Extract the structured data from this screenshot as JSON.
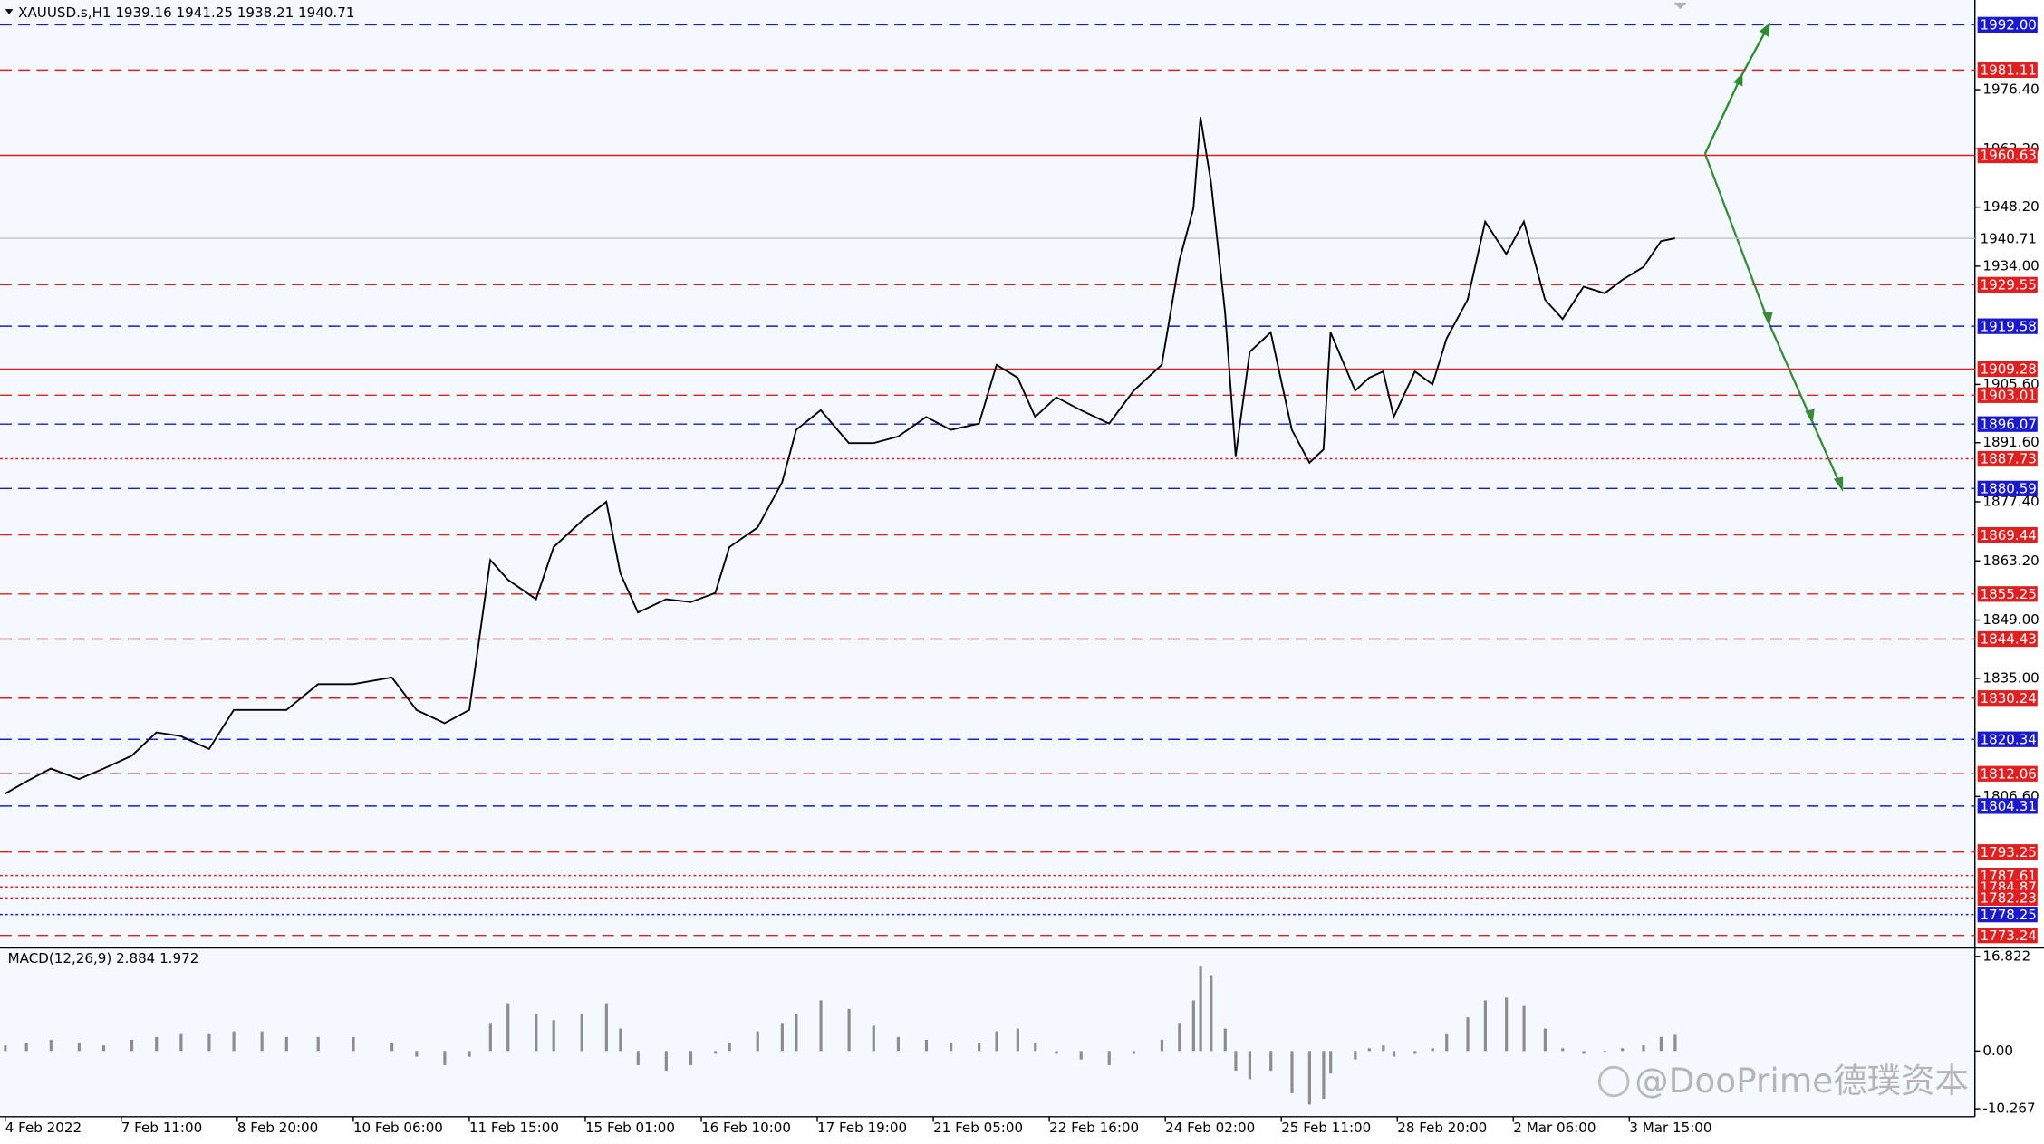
{
  "chart_data": [
    {
      "type": "line",
      "title": "XAUUSD.s,H1  1939.16 1941.25 1938.21 1940.71",
      "color": "#000000",
      "x": [
        0,
        6,
        13,
        21,
        28,
        36,
        43,
        50,
        58,
        65,
        73,
        80,
        89,
        99,
        110,
        117,
        125,
        132,
        138,
        143,
        151,
        156,
        164,
        171,
        175,
        180,
        188,
        195,
        202,
        206,
        214,
        221,
        225,
        232,
        240,
        247,
        254,
        262,
        269,
        277,
        282,
        288,
        293,
        299,
        306,
        314,
        321,
        329,
        334,
        338,
        340,
        343,
        347,
        350,
        354,
        360,
        366,
        371,
        375,
        377,
        384,
        388,
        392,
        395,
        401,
        406,
        410,
        416,
        421,
        427,
        432,
        438,
        443,
        449,
        455,
        460,
        466,
        471,
        475
      ],
      "values": [
        1807.3,
        1810.2,
        1813.3,
        1810.8,
        1813.3,
        1816.4,
        1822,
        1821.1,
        1818,
        1827.4,
        1827.4,
        1827.4,
        1833.6,
        1833.6,
        1835.2,
        1827.4,
        1824.2,
        1827.4,
        1863.4,
        1858.7,
        1854,
        1866.5,
        1872.8,
        1877.4,
        1860.2,
        1850.8,
        1854,
        1853.3,
        1855.5,
        1866.5,
        1871.2,
        1882.1,
        1894.7,
        1899.4,
        1891.5,
        1891.5,
        1893.1,
        1897.8,
        1894.7,
        1896.2,
        1910.3,
        1907.2,
        1897.8,
        1902.5,
        1899.4,
        1896.2,
        1904.1,
        1910.3,
        1935.3,
        1947.9,
        1969.8,
        1954.1,
        1922.8,
        1888.4,
        1913.4,
        1918.1,
        1894.7,
        1886.8,
        1890,
        1918.1,
        1904.1,
        1907.2,
        1908.7,
        1897.8,
        1908.7,
        1905.6,
        1916.6,
        1926,
        1944.7,
        1936.9,
        1944.7,
        1926,
        1921.3,
        1929.1,
        1927.5,
        1930.7,
        1933.8,
        1940,
        1940.71
      ],
      "xlim": [
        -1.48,
        560.3
      ],
      "xticks": [
        {
          "value": 0,
          "label": "4 Feb 2022"
        },
        {
          "value": 33,
          "label": "7 Feb 11:00"
        },
        {
          "value": 66,
          "label": "8 Feb 20:00"
        },
        {
          "value": 99,
          "label": "10 Feb 06:00"
        },
        {
          "value": 132,
          "label": "11 Feb 15:00"
        },
        {
          "value": 165,
          "label": "15 Feb 01:00"
        },
        {
          "value": 198,
          "label": "16 Feb 10:00"
        },
        {
          "value": 231,
          "label": "17 Feb 19:00"
        },
        {
          "value": 264,
          "label": "21 Feb 05:00"
        },
        {
          "value": 297,
          "label": "22 Feb 16:00"
        },
        {
          "value": 330,
          "label": "24 Feb 02:00"
        },
        {
          "value": 363,
          "label": "25 Feb 11:00"
        },
        {
          "value": 396,
          "label": "28 Feb 20:00"
        },
        {
          "value": 429,
          "label": "2 Mar 06:00"
        },
        {
          "value": 462,
          "label": "3 Mar 15:00"
        }
      ],
      "ylim": [
        1770.7,
        1997.95
      ],
      "yticks": [
        {
          "value": 1976.4,
          "label": "1976.40"
        },
        {
          "value": 1962.2,
          "label": "1962.20"
        },
        {
          "value": 1948.2,
          "label": "1948.20"
        },
        {
          "value": 1934,
          "label": "1934.00"
        },
        {
          "value": 1905.6,
          "label": "1905.60"
        },
        {
          "value": 1891.6,
          "label": "1891.60"
        },
        {
          "value": 1877.4,
          "label": "1877.40"
        },
        {
          "value": 1863.2,
          "label": "1863.20"
        },
        {
          "value": 1849,
          "label": "1849.00"
        },
        {
          "value": 1835,
          "label": "1835.00"
        },
        {
          "value": 1806.6,
          "label": "1806.60"
        }
      ],
      "last": {
        "value": 1940.71,
        "label": "1940.71",
        "color": "#c0c0c0"
      },
      "levels": [
        {
          "value": 1992,
          "label": "1992.00",
          "color": "#1a1acc",
          "style": "dashed"
        },
        {
          "value": 1981.11,
          "label": "1981.11",
          "color": "#e02020",
          "style": "dashed"
        },
        {
          "value": 1960.63,
          "label": "1960.63",
          "color": "#e02020",
          "style": "solid"
        },
        {
          "value": 1929.55,
          "label": "1929.55",
          "color": "#e02020",
          "style": "dashed"
        },
        {
          "value": 1919.58,
          "label": "1919.58",
          "color": "#1a1acc",
          "style": "dashed"
        },
        {
          "value": 1909.28,
          "label": "1909.28",
          "color": "#e02020",
          "style": "solid"
        },
        {
          "value": 1903.01,
          "label": "1903.01",
          "color": "#e02020",
          "style": "dashed"
        },
        {
          "value": 1896.07,
          "label": "1896.07",
          "color": "#1a1acc",
          "style": "dashed"
        },
        {
          "value": 1887.73,
          "label": "1887.73",
          "color": "#e02020",
          "style": "dotted"
        },
        {
          "value": 1880.59,
          "label": "1880.59",
          "color": "#1a1acc",
          "style": "dashed"
        },
        {
          "value": 1869.44,
          "label": "1869.44",
          "color": "#e02020",
          "style": "dashed"
        },
        {
          "value": 1855.25,
          "label": "1855.25",
          "color": "#e02020",
          "style": "dashed"
        },
        {
          "value": 1844.43,
          "label": "1844.43",
          "color": "#e02020",
          "style": "dashed"
        },
        {
          "value": 1830.24,
          "label": "1830.24",
          "color": "#e02020",
          "style": "dashed"
        },
        {
          "value": 1820.34,
          "label": "1820.34",
          "color": "#1a1acc",
          "style": "dashed"
        },
        {
          "value": 1812.06,
          "label": "1812.06",
          "color": "#e02020",
          "style": "dashed"
        },
        {
          "value": 1804.31,
          "label": "1804.31",
          "color": "#1a1acc",
          "style": "dashed"
        },
        {
          "value": 1793.25,
          "label": "1793.25",
          "color": "#e02020",
          "style": "dashed"
        },
        {
          "value": 1787.61,
          "label": "1787.61",
          "color": "#e02020",
          "style": "dotted"
        },
        {
          "value": 1784.87,
          "label": "1784.87",
          "color": "#e02020",
          "style": "dotted"
        },
        {
          "value": 1782.23,
          "label": "1782.23",
          "color": "#e02020",
          "style": "dotted"
        },
        {
          "value": 1778.25,
          "label": "1778.25",
          "color": "#1a1acc",
          "style": "dotted"
        },
        {
          "value": 1773.24,
          "label": "1773.24",
          "color": "#e02020",
          "style": "dashed"
        }
      ]
    },
    {
      "type": "bar",
      "title": "MACD(12,26,9) 2.884 1.972",
      "color": "#8c8c8c",
      "x": [
        0,
        6,
        13,
        21,
        28,
        36,
        43,
        50,
        58,
        65,
        73,
        80,
        89,
        99,
        110,
        117,
        125,
        132,
        138,
        143,
        151,
        156,
        164,
        171,
        175,
        180,
        188,
        195,
        202,
        206,
        214,
        221,
        225,
        232,
        240,
        247,
        254,
        262,
        269,
        277,
        282,
        288,
        293,
        299,
        306,
        314,
        321,
        329,
        334,
        338,
        340,
        343,
        347,
        350,
        354,
        360,
        366,
        371,
        375,
        377,
        384,
        388,
        392,
        395,
        401,
        406,
        410,
        416,
        421,
        427,
        432,
        438,
        443,
        449,
        455,
        460,
        466,
        471,
        475
      ],
      "values": [
        1,
        1.5,
        2,
        1.5,
        1,
        2,
        2.5,
        3,
        3,
        3.5,
        3.5,
        2.5,
        2.5,
        2.5,
        1.5,
        -1,
        -2.5,
        -1,
        5,
        8.5,
        6.5,
        5.5,
        6.5,
        8.5,
        4,
        -2.5,
        -3.5,
        -2.5,
        -0.5,
        1.5,
        3.5,
        5,
        6.5,
        9,
        7.5,
        4.5,
        2.5,
        2,
        1.5,
        1.5,
        3.5,
        4,
        1.5,
        -0.5,
        -1.5,
        -2.5,
        -0.5,
        2,
        5,
        9,
        15,
        13.5,
        4,
        -3.5,
        -5,
        -3.5,
        -7.5,
        -9.5,
        -8.5,
        -4,
        -1.5,
        0.5,
        1,
        -1,
        -0.5,
        0.5,
        3,
        6,
        9,
        9.5,
        8,
        4,
        0.5,
        -0.5,
        0,
        0.5,
        1,
        2.5,
        2.884
      ],
      "ylim": [
        -11.66,
        17.98
      ],
      "yticks": [
        16.822,
        {
          "value": 0,
          "label": "0.00"
        },
        -10.267
      ]
    }
  ],
  "watermark": "@DooPrime德璞资本"
}
